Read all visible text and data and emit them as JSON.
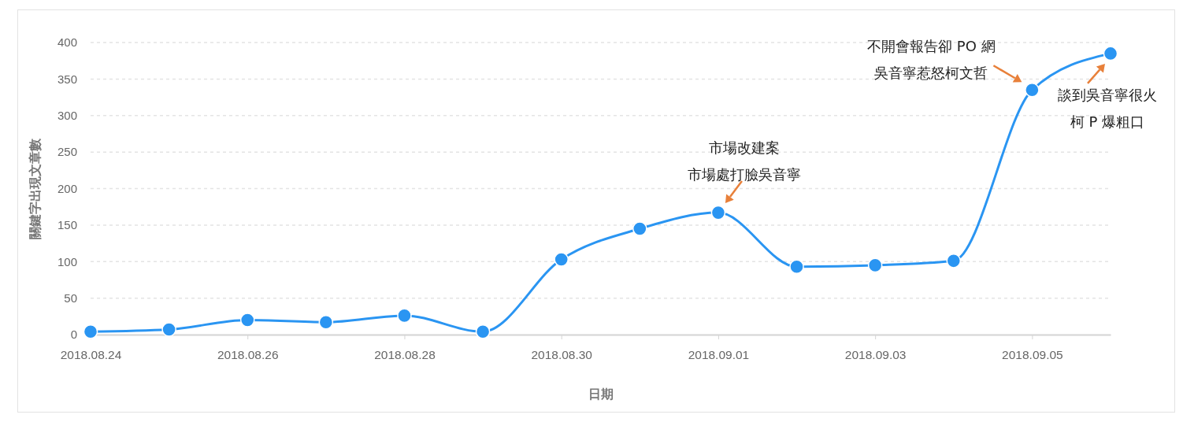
{
  "chart_data": {
    "type": "line",
    "xlabel": "日期",
    "ylabel": "關鍵字出現文章數",
    "x": [
      "2018-08-24",
      "2018-08-25",
      "2018-08-26",
      "2018-08-27",
      "2018-08-28",
      "2018-08-29",
      "2018-08-30",
      "2018-08-31",
      "2018-09-01",
      "2018-09-02",
      "2018-09-03",
      "2018-09-04",
      "2018-09-05",
      "2018-09-06"
    ],
    "values": [
      4,
      7,
      20,
      17,
      26,
      4,
      103,
      145,
      167,
      93,
      95,
      101,
      335,
      385
    ],
    "color": "#2a95f2",
    "marker": "circle",
    "grid": "y",
    "xlim": [
      "2018-08-24",
      "2018-09-06"
    ],
    "xticks": [
      {
        "value": "2018-08-24",
        "label": "2018.08.24"
      },
      {
        "value": "2018-08-26",
        "label": "2018.08.26"
      },
      {
        "value": "2018-08-28",
        "label": "2018.08.28"
      },
      {
        "value": "2018-08-30",
        "label": "2018.08.30"
      },
      {
        "value": "2018-09-01",
        "label": "2018.09.01"
      },
      {
        "value": "2018-09-03",
        "label": "2018.09.03"
      },
      {
        "value": "2018-09-05",
        "label": "2018.09.05"
      }
    ],
    "ylim": [
      0,
      400
    ],
    "yticks": [
      0,
      50,
      100,
      150,
      200,
      250,
      300,
      350,
      400
    ],
    "annotations": [
      {
        "text": "市場改建案市場處打臉吳音寧",
        "x": "2018-09-01",
        "y": 167
      },
      {
        "text": "不開會報告卻 PO 網吳音寧惹怒柯文哲",
        "x": "2018-09-05",
        "y": 335
      },
      {
        "text": "談到吳音寧很火柯 P 爆粗口",
        "x": "2018-09-06",
        "y": 385
      }
    ]
  }
}
